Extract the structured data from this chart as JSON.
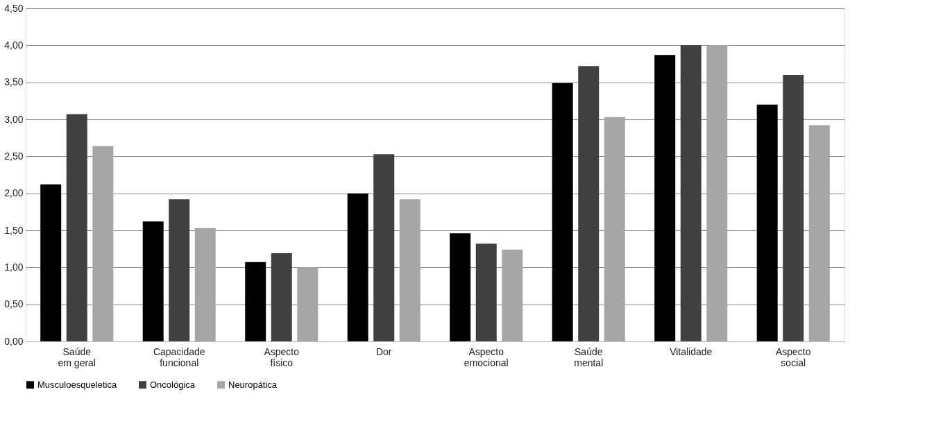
{
  "chart_data": {
    "type": "bar",
    "categories": [
      "Saúde em geral",
      "Capacidade funcional",
      "Aspecto físico",
      "Dor",
      "Aspecto emocional",
      "Saúde mental",
      "Vitalidade",
      "Aspecto social"
    ],
    "series": [
      {
        "name": "Musculoesqueletica",
        "color": "#000000",
        "values": [
          2.12,
          1.62,
          1.07,
          2.0,
          1.46,
          3.49,
          3.87,
          3.2
        ]
      },
      {
        "name": "Oncológica",
        "color": "#404040",
        "values": [
          3.07,
          1.92,
          1.19,
          2.53,
          1.32,
          3.72,
          4.0,
          3.6
        ]
      },
      {
        "name": "Neuropática",
        "color": "#a6a6a6",
        "values": [
          2.64,
          1.53,
          1.0,
          1.92,
          1.24,
          3.03,
          4.0,
          2.92
        ]
      }
    ],
    "ylim": [
      0,
      4.5
    ],
    "yticks": [
      {
        "value": 0,
        "label": "0,00"
      },
      {
        "value": 0.5,
        "label": "0,50"
      },
      {
        "value": 1,
        "label": "1,00"
      },
      {
        "value": 1.5,
        "label": "1,50"
      },
      {
        "value": 2,
        "label": "2,00"
      },
      {
        "value": 2.5,
        "label": "2,50"
      },
      {
        "value": 3,
        "label": "3,00"
      },
      {
        "value": 3.5,
        "label": "3,50"
      },
      {
        "value": 4,
        "label": "4,00"
      },
      {
        "value": 4.5,
        "label": "4,50"
      }
    ],
    "grid": "y",
    "legend": "bottom"
  }
}
